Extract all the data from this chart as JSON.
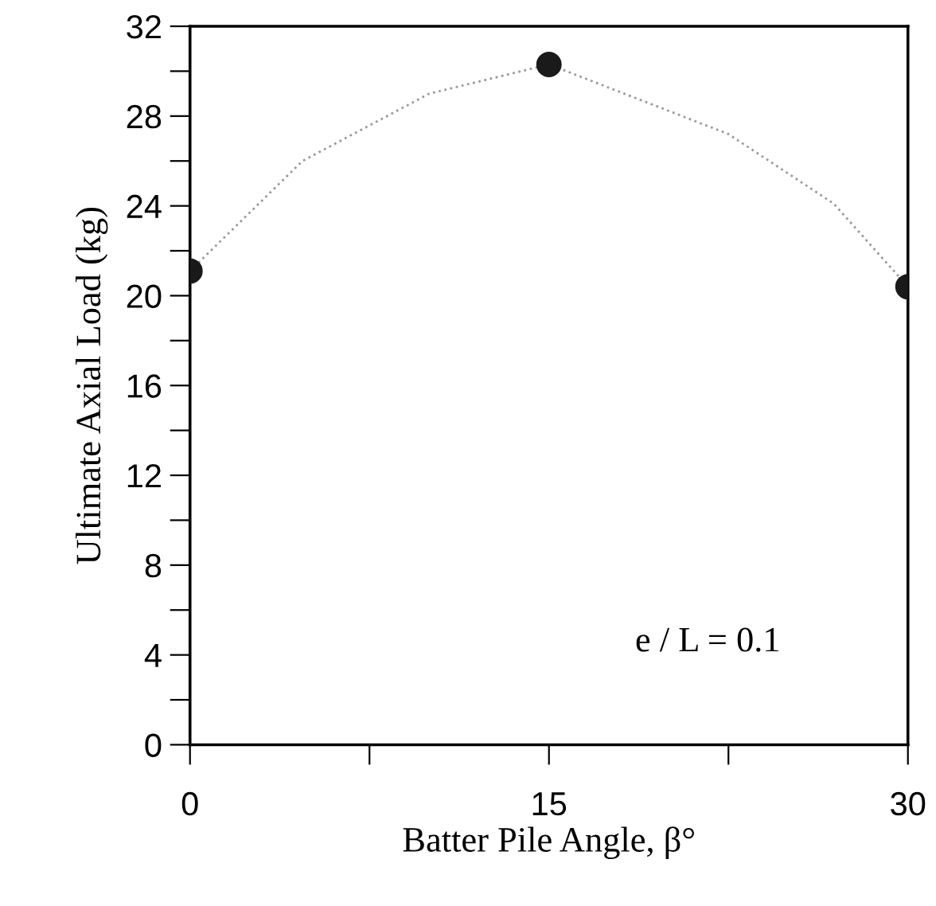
{
  "chart_data": {
    "type": "scatter",
    "xlabel": "Batter Pile Angle, β°",
    "ylabel": "Ultimate Axial Load (kg)",
    "annotations": [
      "e / L = 0.1"
    ],
    "marker": "circle",
    "grid": false,
    "legend": false,
    "series": [
      {
        "color": "#1a1a1a",
        "x": [
          0,
          15,
          30
        ],
        "values": [
          21.1,
          30.3,
          20.4
        ]
      },
      {
        "type": "line",
        "color": "#9a9a9a",
        "line_style": "dotted",
        "marker": "none",
        "x": [
          0,
          4.7,
          10.0,
          15,
          22.5,
          26.9,
          30
        ],
        "values": [
          21.1,
          26.0,
          29.0,
          30.3,
          27.2,
          24.1,
          20.4
        ]
      }
    ],
    "xlim": [
      0,
      30
    ],
    "xticks": [
      0,
      {
        "value": 7.5,
        "label": null
      },
      15,
      {
        "value": 22.5,
        "label": null
      },
      30
    ],
    "ylim": [
      0,
      32
    ],
    "yticks": [
      0,
      {
        "value": 2,
        "label": null
      },
      4,
      {
        "value": 6,
        "label": null
      },
      8,
      {
        "value": 10,
        "label": null
      },
      12,
      {
        "value": 14,
        "label": null
      },
      16,
      {
        "value": 18,
        "label": null
      },
      20,
      {
        "value": 22,
        "label": null
      },
      24,
      {
        "value": 26,
        "label": null
      },
      28,
      {
        "value": 30,
        "label": null
      },
      32
    ]
  }
}
